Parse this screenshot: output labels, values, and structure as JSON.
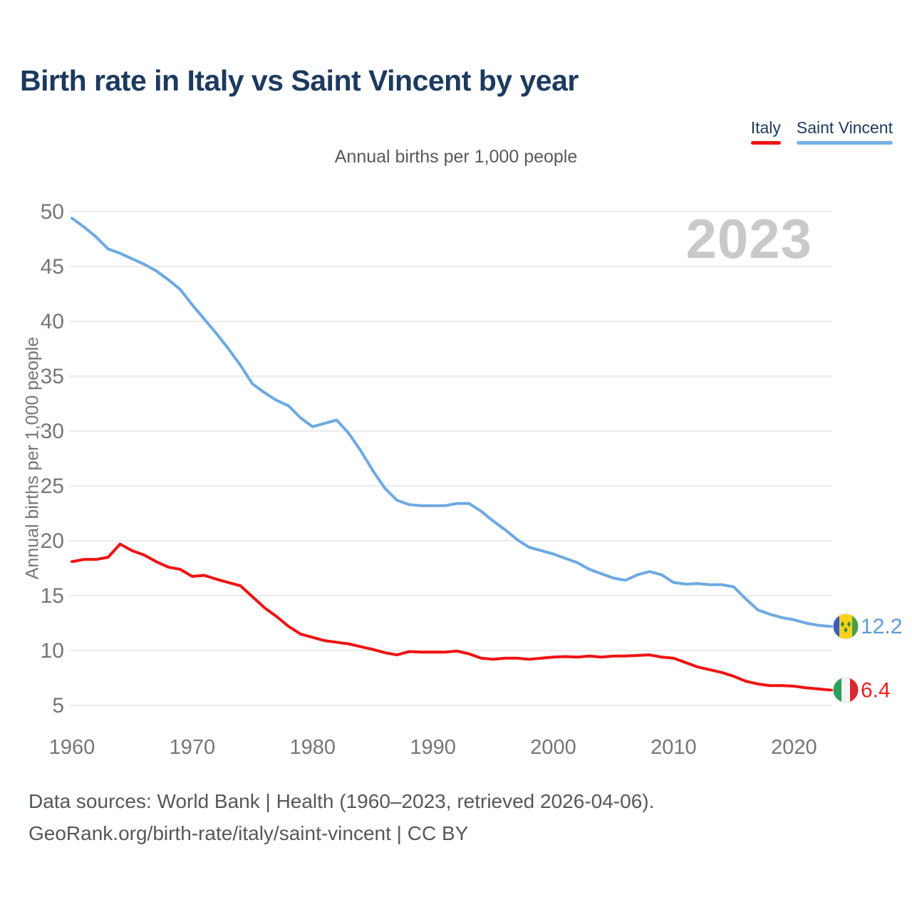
{
  "header": {
    "title": "Birth rate in Italy vs Saint Vincent by year",
    "subtitle": "Annual births per 1,000 people"
  },
  "legend": {
    "items": [
      {
        "label": "Italy",
        "color": "#f01212"
      },
      {
        "label": "Saint Vincent",
        "color": "#74b0e8"
      }
    ]
  },
  "watermark": "2023",
  "chart_data": {
    "type": "line",
    "title": "Birth rate in Italy vs Saint Vincent by year",
    "ylabel": "Annual births per 1,000 people",
    "xlabel": "",
    "grid": true,
    "legend_position": "top-right",
    "xlim": [
      1960,
      2023
    ],
    "ylim": [
      5,
      50
    ],
    "x_ticks": [
      1960,
      1970,
      1980,
      1990,
      2000,
      2010,
      2020
    ],
    "y_ticks": [
      5,
      10,
      15,
      20,
      25,
      30,
      35,
      40,
      45,
      50
    ],
    "x": [
      1960,
      1961,
      1962,
      1963,
      1964,
      1965,
      1966,
      1967,
      1968,
      1969,
      1970,
      1971,
      1972,
      1973,
      1974,
      1975,
      1976,
      1977,
      1978,
      1979,
      1980,
      1981,
      1982,
      1983,
      1984,
      1985,
      1986,
      1987,
      1988,
      1989,
      1990,
      1991,
      1992,
      1993,
      1994,
      1995,
      1996,
      1997,
      1998,
      1999,
      2000,
      2001,
      2002,
      2003,
      2004,
      2005,
      2006,
      2007,
      2008,
      2009,
      2010,
      2011,
      2012,
      2013,
      2014,
      2015,
      2016,
      2017,
      2018,
      2019,
      2020,
      2021,
      2022,
      2023
    ],
    "series": [
      {
        "name": "Saint Vincent",
        "line_color": "#6da9e2",
        "label_color": "#5b9cd9",
        "end_label": "12.2",
        "flag": "saint_vincent",
        "values": [
          49.4,
          48.6,
          47.7,
          46.6,
          46.2,
          45.7,
          45.2,
          44.6,
          43.8,
          42.9,
          41.5,
          40.2,
          38.9,
          37.5,
          36.0,
          34.3,
          33.5,
          32.8,
          32.3,
          31.2,
          30.4,
          30.7,
          31.0,
          29.8,
          28.2,
          26.4,
          24.8,
          23.7,
          23.3,
          23.2,
          23.2,
          23.2,
          23.4,
          23.4,
          22.7,
          21.8,
          21.0,
          20.1,
          19.4,
          19.1,
          18.8,
          18.4,
          18.0,
          17.4,
          17.0,
          16.6,
          16.4,
          16.9,
          17.2,
          16.9,
          16.2,
          16.05,
          16.1,
          16.0,
          16.0,
          15.8,
          14.7,
          13.7,
          13.3,
          13.0,
          12.8,
          12.5,
          12.3,
          12.2
        ]
      },
      {
        "name": "Italy",
        "line_color": "#f01212",
        "label_color": "#ee1f1f",
        "end_label": "6.4",
        "flag": "italy",
        "values": [
          18.1,
          18.3,
          18.3,
          18.5,
          19.7,
          19.1,
          18.7,
          18.1,
          17.6,
          17.4,
          16.75,
          16.85,
          16.5,
          16.2,
          15.9,
          14.9,
          13.9,
          13.1,
          12.2,
          11.5,
          11.2,
          10.9,
          10.75,
          10.6,
          10.35,
          10.1,
          9.8,
          9.6,
          9.9,
          9.85,
          9.85,
          9.85,
          9.95,
          9.7,
          9.3,
          9.2,
          9.3,
          9.3,
          9.2,
          9.3,
          9.4,
          9.45,
          9.4,
          9.5,
          9.4,
          9.5,
          9.5,
          9.55,
          9.6,
          9.4,
          9.3,
          8.9,
          8.5,
          8.25,
          8.0,
          7.65,
          7.2,
          6.95,
          6.8,
          6.8,
          6.75,
          6.6,
          6.5,
          6.4
        ]
      }
    ],
    "flags": {
      "saint_vincent": {
        "bands": [
          "#3b5cc4",
          "#fbd11b",
          "#44a247"
        ],
        "band_widths": [
          1,
          2,
          1
        ],
        "diamond_color": "#2f8f3c"
      },
      "italy": {
        "bands": [
          "#2aa058",
          "#f5f5f5",
          "#dd2530"
        ],
        "band_widths": [
          1,
          1,
          1
        ]
      }
    },
    "style": {
      "grid_color": "#ebebeb",
      "tick_color": "#757575",
      "watermark_color": "#c9c9c9"
    }
  },
  "footer": {
    "line1": "Data sources: World Bank | Health (1960–2023, retrieved 2026-04-06).",
    "line2": "GeoRank.org/birth-rate/italy/saint-vincent | CC BY"
  }
}
